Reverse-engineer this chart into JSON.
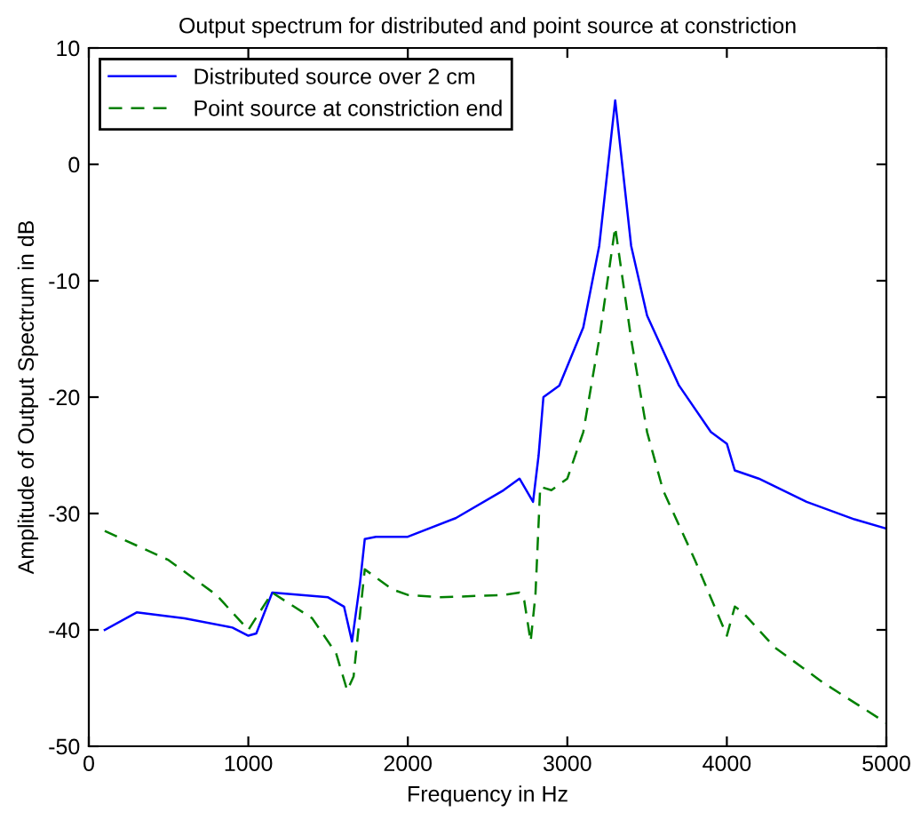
{
  "chart_data": {
    "type": "line",
    "title": "Output spectrum for distributed and point source at constriction",
    "xlabel": "Frequency in Hz",
    "ylabel": "Amplitude of Output Spectrum in dB",
    "xlim": [
      0,
      5000
    ],
    "xticks": [
      0,
      1000,
      2000,
      3000,
      4000,
      5000
    ],
    "ylim": [
      -50,
      10
    ],
    "yticks": [
      -50,
      -40,
      -30,
      -20,
      -10,
      0,
      10
    ],
    "grid": false,
    "legend": "top left",
    "series": [
      {
        "name": "Distributed source over 2 cm",
        "color": "#0000ff",
        "line_style": "solid",
        "x": [
          100,
          300,
          600,
          900,
          1000,
          1050,
          1150,
          1500,
          1600,
          1650,
          1700,
          1730,
          1800,
          2000,
          2300,
          2600,
          2700,
          2785,
          2820,
          2850,
          2950,
          3100,
          3200,
          3300,
          3400,
          3500,
          3700,
          3900,
          4000,
          4050,
          4200,
          4500,
          4800,
          5000
        ],
        "values": [
          -40,
          -38.5,
          -39,
          -39.8,
          -40.5,
          -40.3,
          -36.8,
          -37.2,
          -38,
          -41,
          -36,
          -32.2,
          -32,
          -32,
          -30.4,
          -28,
          -27,
          -29,
          -25,
          -20,
          -19,
          -14,
          -7,
          5.5,
          -7,
          -13,
          -19,
          -23,
          -24,
          -26.3,
          -27,
          -29,
          -30.5,
          -31.3
        ]
      },
      {
        "name": "Point source at constriction end",
        "color": "#008000",
        "line_style": "dashed",
        "x": [
          100,
          500,
          800,
          1000,
          1150,
          1400,
          1550,
          1620,
          1660,
          1690,
          1730,
          1900,
          2000,
          2200,
          2600,
          2700,
          2730,
          2770,
          2800,
          2830,
          2900,
          3000,
          3100,
          3200,
          3300,
          3400,
          3500,
          3600,
          3800,
          4000,
          4050,
          4100,
          4300,
          4600,
          5000
        ],
        "values": [
          -31.5,
          -34,
          -37,
          -40,
          -36.8,
          -39,
          -42,
          -45.2,
          -44,
          -40,
          -34.8,
          -36.5,
          -37,
          -37.2,
          -37,
          -36.8,
          -37.5,
          -41,
          -37,
          -27.7,
          -28,
          -27,
          -23,
          -15,
          -5.4,
          -15,
          -23,
          -28,
          -34,
          -40.5,
          -38,
          -38.5,
          -41.5,
          -44.5,
          -48
        ]
      }
    ]
  }
}
